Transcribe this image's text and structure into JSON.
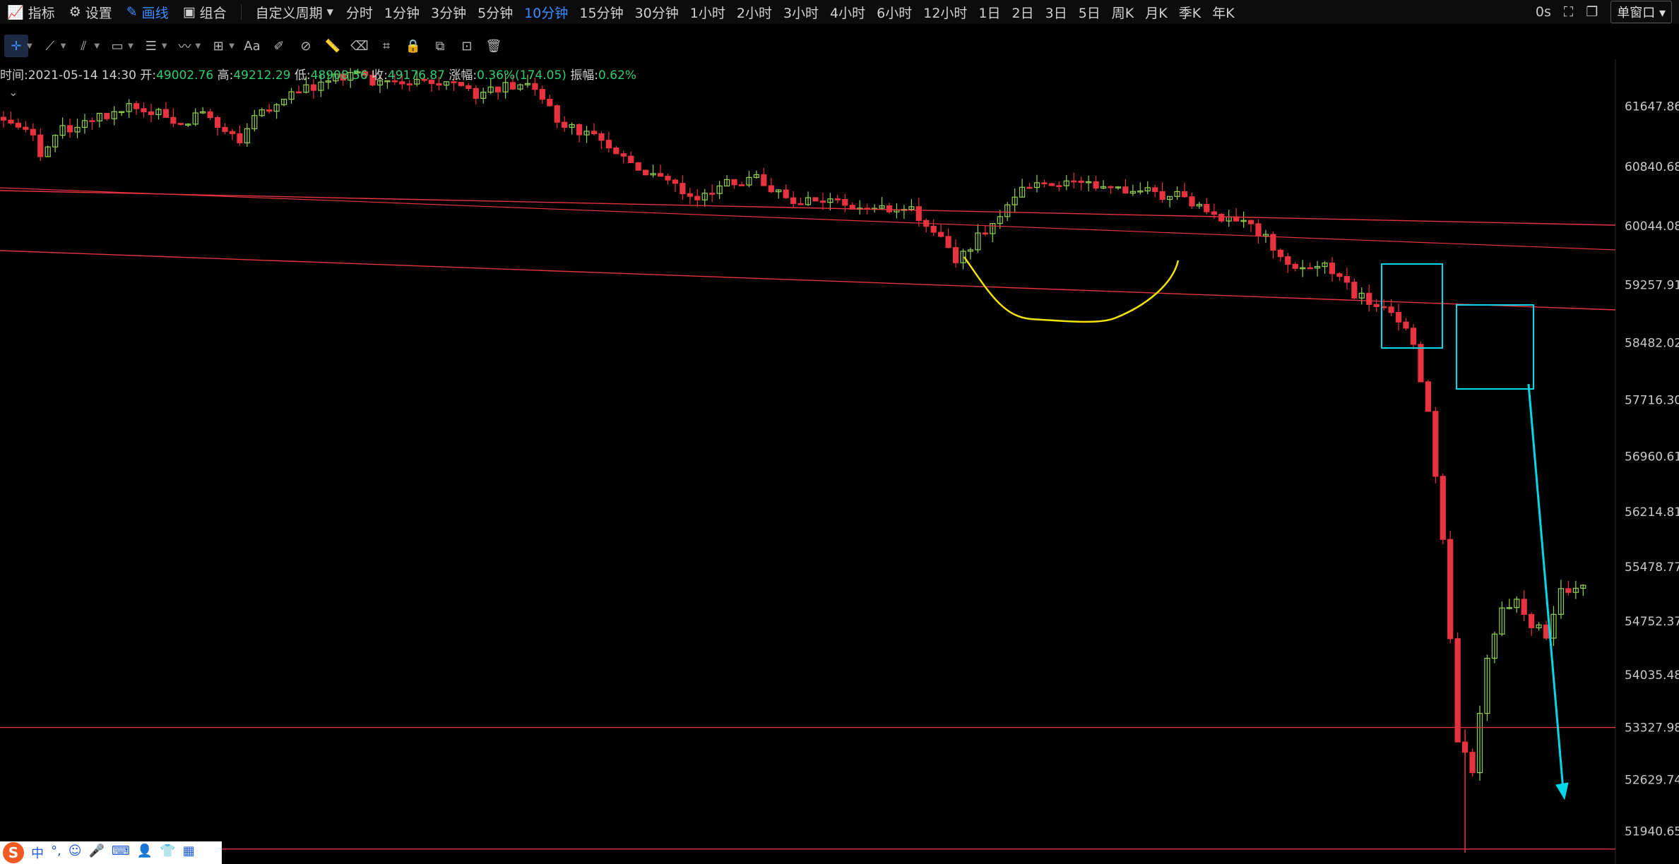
{
  "toolbar": {
    "indicator": "指标",
    "settings": "设置",
    "draw": "画线",
    "combo": "组合",
    "custom_period": "自定义周期",
    "periods": [
      "分时",
      "1分钟",
      "3分钟",
      "5分钟",
      "10分钟",
      "15分钟",
      "30分钟",
      "1小时",
      "2小时",
      "3小时",
      "4小时",
      "6小时",
      "12小时",
      "1日",
      "2日",
      "3日",
      "5日",
      "周K",
      "月K",
      "季K",
      "年K"
    ],
    "active_period": "10分钟",
    "countdown": "0s",
    "window_mode": "单窗口"
  },
  "info": {
    "time_label": "时间:",
    "time": "2021-05-14 14:30",
    "open_label": "开:",
    "open": "49002.76",
    "high_label": "高:",
    "high": "49212.29",
    "low_label": "低:",
    "low": "48908.56",
    "close_label": "收:",
    "close": "49176.87",
    "change_label": "涨幅:",
    "change": "0.36%(174.05)",
    "amp_label": "振幅:",
    "amp": "0.62%"
  },
  "ime": {
    "items": [
      "中",
      "°,",
      "☺",
      "🎤",
      "⌨",
      "👤",
      "👕",
      "▦"
    ]
  },
  "colors": {
    "up": "#8fd14f",
    "down": "#e8323f",
    "trend": "#e8323f",
    "box": "#00d8e8",
    "arrow": "#00d8e8",
    "curve": "#f2e20a",
    "axis_text": "#c9c9c9"
  },
  "chart_data": {
    "type": "candlestick",
    "ylim": [
      51500,
      62200
    ],
    "yticks": [
      "61647.86",
      "60840.68",
      "60044.08",
      "59257.91",
      "58482.02",
      "57716.30",
      "56960.61",
      "56214.81",
      "55478.77",
      "54752.37",
      "54035.48",
      "53327.98",
      "52629.74",
      "51940.65"
    ],
    "horizontal_lines": [
      53327.98,
      51700
    ],
    "candles_count": 215
  }
}
